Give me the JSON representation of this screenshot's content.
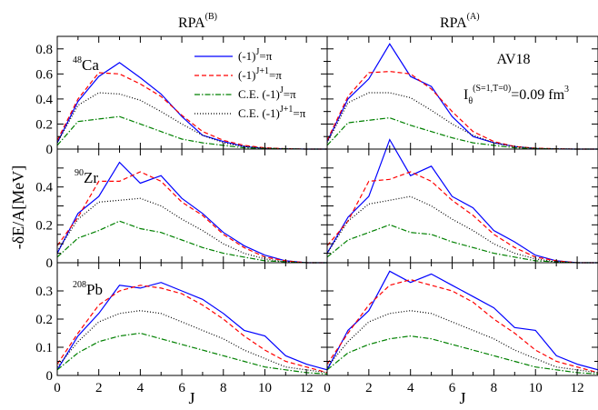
{
  "chart_data": {
    "type": "line",
    "column_titles": [
      {
        "main": "RPA",
        "sup": "(B)"
      },
      {
        "main": "RPA",
        "sup": "(A)"
      }
    ],
    "xlabel": "J",
    "ylabel": "-δE/A[MeV]",
    "xlim": [
      0,
      13
    ],
    "x_ticks": [
      0,
      2,
      4,
      6,
      8,
      10,
      12
    ],
    "legend": {
      "location": "top-right of top-left panel",
      "entries": [
        {
          "pre": "(-1)",
          "sup": "J",
          "post": "=π",
          "color": "#0000ff",
          "dash": "solid"
        },
        {
          "pre": "(-1)",
          "sup": "J+1",
          "post": "=π",
          "color": "#ff0000",
          "dash": "dashed"
        },
        {
          "pre": "C.E. (-1)",
          "sup": "J",
          "post": "=π",
          "color": "#008000",
          "dash": "dashdot"
        },
        {
          "pre": "C.E. (-1)",
          "sup": "J+1",
          "post": "=π",
          "color": "#000000",
          "dash": "dotted"
        }
      ]
    },
    "annotations": {
      "potential": "AV18",
      "integral": {
        "main": "I",
        "sub": "θ",
        "sup": "(S=1,T=0)",
        "value": "=0.09 fm",
        "unit_sup": "3"
      }
    },
    "rows": [
      {
        "nucleus": {
          "mass": "48",
          "symbol": "Ca"
        },
        "ylim": [
          0,
          0.9
        ],
        "y_ticks": [
          0,
          0.2,
          0.4,
          0.6,
          0.8
        ],
        "y_tick_labels": [
          "0",
          "0.2",
          "0.4",
          "0.6",
          "0.8"
        ],
        "panels": [
          {
            "column": "RPA(B)",
            "x": [
              0,
              1,
              2,
              3,
              4,
              5,
              6,
              7,
              8,
              9,
              10,
              11,
              12,
              13
            ],
            "series": [
              {
                "name": "(-1)^J=π",
                "values": [
                  0.05,
                  0.38,
                  0.58,
                  0.69,
                  0.57,
                  0.44,
                  0.26,
                  0.11,
                  0.06,
                  0.02,
                  0.005,
                  0.002,
                  0.0,
                  0.0
                ]
              },
              {
                "name": "(-1)^(J+1)=π",
                "values": [
                  0.07,
                  0.4,
                  0.61,
                  0.6,
                  0.52,
                  0.42,
                  0.27,
                  0.14,
                  0.07,
                  0.03,
                  0.01,
                  0.003,
                  0.0,
                  0.0
                ]
              },
              {
                "name": "C.E. (-1)^J=π",
                "values": [
                  0.03,
                  0.22,
                  0.24,
                  0.26,
                  0.2,
                  0.14,
                  0.08,
                  0.05,
                  0.03,
                  0.01,
                  0.005,
                  0.002,
                  0.0,
                  0.0
                ]
              },
              {
                "name": "C.E. (-1)^(J+1)=π",
                "values": [
                  0.05,
                  0.35,
                  0.45,
                  0.44,
                  0.39,
                  0.3,
                  0.2,
                  0.11,
                  0.05,
                  0.02,
                  0.008,
                  0.002,
                  0.0,
                  0.0
                ]
              }
            ]
          },
          {
            "column": "RPA(A)",
            "x": [
              0,
              1,
              2,
              3,
              4,
              5,
              6,
              7,
              8,
              9,
              10,
              11,
              12,
              13
            ],
            "series": [
              {
                "name": "(-1)^J=π",
                "values": [
                  0.06,
                  0.4,
                  0.56,
                  0.84,
                  0.58,
                  0.5,
                  0.26,
                  0.1,
                  0.05,
                  0.02,
                  0.005,
                  0.001,
                  0.0,
                  0.0
                ]
              },
              {
                "name": "(-1)^(J+1)=π",
                "values": [
                  0.07,
                  0.42,
                  0.61,
                  0.62,
                  0.6,
                  0.48,
                  0.3,
                  0.14,
                  0.06,
                  0.02,
                  0.007,
                  0.002,
                  0.0,
                  0.0
                ]
              },
              {
                "name": "C.E. (-1)^J=π",
                "values": [
                  0.03,
                  0.21,
                  0.23,
                  0.25,
                  0.19,
                  0.14,
                  0.09,
                  0.05,
                  0.03,
                  0.01,
                  0.004,
                  0.001,
                  0.0,
                  0.0
                ]
              },
              {
                "name": "C.E. (-1)^(J+1)=π",
                "values": [
                  0.05,
                  0.37,
                  0.45,
                  0.45,
                  0.41,
                  0.31,
                  0.2,
                  0.11,
                  0.05,
                  0.02,
                  0.006,
                  0.002,
                  0.0,
                  0.0
                ]
              }
            ]
          }
        ]
      },
      {
        "nucleus": {
          "mass": "90",
          "symbol": "Zr"
        },
        "ylim": [
          0,
          0.6
        ],
        "y_ticks": [
          0,
          0.1,
          0.2,
          0.3,
          0.4,
          0.5
        ],
        "y_tick_labels": [
          "0",
          "",
          "0.2",
          "",
          "0.4",
          ""
        ],
        "panels": [
          {
            "column": "RPA(B)",
            "x": [
              0,
              1,
              2,
              3,
              4,
              5,
              6,
              7,
              8,
              9,
              10,
              11,
              12,
              13
            ],
            "series": [
              {
                "name": "(-1)^J=π",
                "values": [
                  0.05,
                  0.26,
                  0.35,
                  0.53,
                  0.42,
                  0.46,
                  0.34,
                  0.26,
                  0.16,
                  0.09,
                  0.04,
                  0.01,
                  0.0,
                  0.0
                ]
              },
              {
                "name": "(-1)^(J+1)=π",
                "values": [
                  0.09,
                  0.24,
                  0.43,
                  0.43,
                  0.48,
                  0.43,
                  0.32,
                  0.25,
                  0.15,
                  0.08,
                  0.03,
                  0.01,
                  0.0,
                  0.0
                ]
              },
              {
                "name": "C.E. (-1)^J=π",
                "values": [
                  0.03,
                  0.13,
                  0.17,
                  0.22,
                  0.18,
                  0.16,
                  0.12,
                  0.08,
                  0.05,
                  0.03,
                  0.01,
                  0.005,
                  0.0,
                  0.0
                ]
              },
              {
                "name": "C.E. (-1)^(J+1)=π",
                "values": [
                  0.06,
                  0.23,
                  0.32,
                  0.33,
                  0.34,
                  0.3,
                  0.23,
                  0.17,
                  0.1,
                  0.05,
                  0.02,
                  0.005,
                  0.0,
                  0.0
                ]
              }
            ]
          },
          {
            "column": "RPA(A)",
            "x": [
              0,
              1,
              2,
              3,
              4,
              5,
              6,
              7,
              8,
              9,
              10,
              11,
              12,
              13
            ],
            "series": [
              {
                "name": "(-1)^J=π",
                "values": [
                  0.05,
                  0.24,
                  0.35,
                  0.65,
                  0.46,
                  0.51,
                  0.35,
                  0.29,
                  0.17,
                  0.11,
                  0.04,
                  0.01,
                  0.0,
                  0.0
                ]
              },
              {
                "name": "(-1)^(J+1)=π",
                "values": [
                  0.09,
                  0.22,
                  0.43,
                  0.44,
                  0.48,
                  0.43,
                  0.33,
                  0.25,
                  0.15,
                  0.08,
                  0.03,
                  0.01,
                  0.0,
                  0.0
                ]
              },
              {
                "name": "C.E. (-1)^J=π",
                "values": [
                  0.03,
                  0.12,
                  0.16,
                  0.2,
                  0.16,
                  0.15,
                  0.11,
                  0.08,
                  0.05,
                  0.03,
                  0.01,
                  0.005,
                  0.0,
                  0.0
                ]
              },
              {
                "name": "C.E. (-1)^(J+1)=π",
                "values": [
                  0.05,
                  0.22,
                  0.31,
                  0.33,
                  0.35,
                  0.3,
                  0.23,
                  0.17,
                  0.1,
                  0.05,
                  0.02,
                  0.005,
                  0.0,
                  0.0
                ]
              }
            ]
          }
        ]
      },
      {
        "nucleus": {
          "mass": "208",
          "symbol": "Pb"
        },
        "ylim": [
          0,
          0.4
        ],
        "y_ticks": [
          0,
          0.1,
          0.2,
          0.3
        ],
        "y_tick_labels": [
          "0",
          "0.1",
          "0.2",
          "0.3"
        ],
        "panels": [
          {
            "column": "RPA(B)",
            "x": [
              0,
              1,
              2,
              3,
              4,
              5,
              6,
              7,
              8,
              9,
              10,
              11,
              12,
              13
            ],
            "series": [
              {
                "name": "(-1)^J=π",
                "values": [
                  0.02,
                  0.14,
                  0.22,
                  0.32,
                  0.31,
                  0.33,
                  0.3,
                  0.27,
                  0.22,
                  0.16,
                  0.14,
                  0.07,
                  0.04,
                  0.02
                ]
              },
              {
                "name": "(-1)^(J+1)=π",
                "values": [
                  0.04,
                  0.15,
                  0.25,
                  0.3,
                  0.32,
                  0.31,
                  0.29,
                  0.25,
                  0.2,
                  0.14,
                  0.09,
                  0.05,
                  0.03,
                  0.01
                ]
              },
              {
                "name": "C.E. (-1)^J=π",
                "values": [
                  0.02,
                  0.08,
                  0.12,
                  0.14,
                  0.15,
                  0.13,
                  0.11,
                  0.09,
                  0.07,
                  0.05,
                  0.03,
                  0.02,
                  0.01,
                  0.005
                ]
              },
              {
                "name": "C.E. (-1)^(J+1)=π",
                "values": [
                  0.03,
                  0.12,
                  0.19,
                  0.22,
                  0.23,
                  0.22,
                  0.19,
                  0.16,
                  0.13,
                  0.09,
                  0.06,
                  0.03,
                  0.02,
                  0.01
                ]
              }
            ]
          },
          {
            "column": "RPA(A)",
            "x": [
              0,
              1,
              2,
              3,
              4,
              5,
              6,
              7,
              8,
              9,
              10,
              11,
              12,
              13
            ],
            "series": [
              {
                "name": "(-1)^J=π",
                "values": [
                  0.02,
                  0.16,
                  0.23,
                  0.37,
                  0.33,
                  0.36,
                  0.32,
                  0.28,
                  0.24,
                  0.17,
                  0.16,
                  0.07,
                  0.04,
                  0.02
                ]
              },
              {
                "name": "(-1)^(J+1)=π",
                "values": [
                  0.04,
                  0.15,
                  0.25,
                  0.32,
                  0.34,
                  0.32,
                  0.3,
                  0.26,
                  0.2,
                  0.15,
                  0.09,
                  0.05,
                  0.03,
                  0.01
                ]
              },
              {
                "name": "C.E. (-1)^J=π",
                "values": [
                  0.02,
                  0.08,
                  0.11,
                  0.13,
                  0.14,
                  0.13,
                  0.11,
                  0.09,
                  0.07,
                  0.05,
                  0.03,
                  0.02,
                  0.01,
                  0.005
                ]
              },
              {
                "name": "C.E. (-1)^(J+1)=π",
                "values": [
                  0.03,
                  0.12,
                  0.19,
                  0.22,
                  0.23,
                  0.22,
                  0.19,
                  0.16,
                  0.13,
                  0.09,
                  0.06,
                  0.03,
                  0.02,
                  0.01
                ]
              }
            ]
          }
        ]
      }
    ]
  }
}
